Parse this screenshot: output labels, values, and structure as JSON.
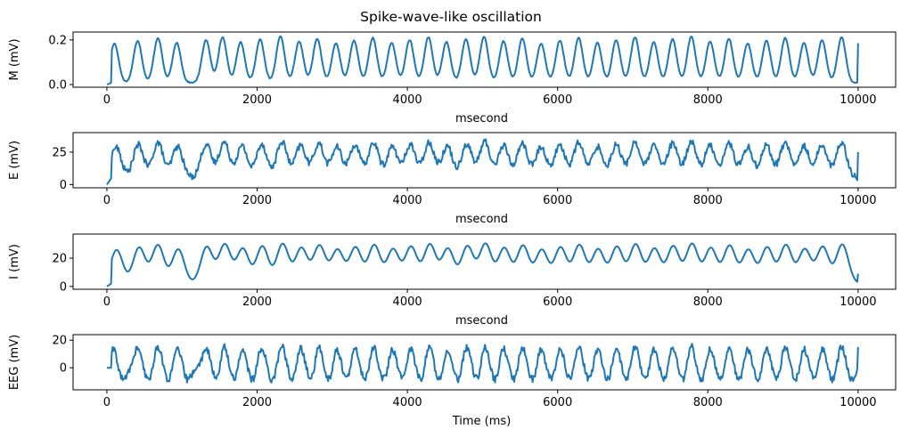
{
  "figure": {
    "title": "Spike-wave-like oscillation"
  },
  "chart_data": [
    {
      "type": "line",
      "name": "M",
      "ylabel": "M (mV)",
      "xlabel": "msecond",
      "xlim": [
        -450,
        10500
      ],
      "ylim": [
        -0.012,
        0.235
      ],
      "xticks": [
        0,
        2000,
        4000,
        6000,
        8000,
        10000
      ],
      "yticks": [
        0.0,
        0.2
      ],
      "ytick_labels": [
        "0.0",
        "0.2"
      ],
      "color": "#1f77b4",
      "shape": {
        "peaks_ms": [
          100,
          410,
          680,
          930,
          1320,
          1540,
          1780,
          2040,
          2310,
          2560,
          2800,
          3050,
          3290,
          3540,
          3790,
          4030,
          4280,
          4520,
          4780,
          5020,
          5280,
          5530,
          5780,
          6030,
          6280,
          6530,
          6780,
          7030,
          7280,
          7530,
          7780,
          8030,
          8280,
          8530,
          8780,
          9030,
          9280,
          9520,
          9780
        ],
        "peak_value": 0.215,
        "baseline": 0.008,
        "end_value": 0.185
      }
    },
    {
      "type": "line",
      "name": "E",
      "ylabel": "E (mV)",
      "xlabel": "msecond",
      "xlim": [
        -450,
        10500
      ],
      "ylim": [
        -2.5,
        40
      ],
      "xticks": [
        0,
        2000,
        4000,
        6000,
        8000,
        10000
      ],
      "yticks": [
        0,
        25
      ],
      "ytick_labels": [
        "0",
        "25"
      ],
      "color": "#1f77b4",
      "shape": {
        "peaks_ms": [
          120,
          420,
          680,
          940,
          1320,
          1560,
          1800,
          2060,
          2330,
          2580,
          2820,
          3060,
          3300,
          3550,
          3800,
          4040,
          4290,
          4530,
          4790,
          5030,
          5280,
          5530,
          5780,
          6030,
          6280,
          6530,
          6780,
          7030,
          7280,
          7530,
          7780,
          8030,
          8280,
          8530,
          8780,
          9030,
          9280,
          9520,
          9780
        ],
        "peak_value": 33,
        "baseline": 5,
        "end_value": 25
      }
    },
    {
      "type": "line",
      "name": "I",
      "ylabel": "I (mV)",
      "xlabel": "msecond",
      "xlim": [
        -450,
        10500
      ],
      "ylim": [
        -2,
        37
      ],
      "xticks": [
        0,
        2000,
        4000,
        6000,
        8000,
        10000
      ],
      "yticks": [
        0,
        20
      ],
      "ytick_labels": [
        "0",
        "20"
      ],
      "color": "#1f77b4",
      "shape": {
        "peaks_ms": [
          130,
          430,
          680,
          950,
          1330,
          1570,
          1810,
          2070,
          2340,
          2590,
          2830,
          3070,
          3310,
          3560,
          3810,
          4050,
          4300,
          4540,
          4800,
          5040,
          5290,
          5540,
          5790,
          6040,
          6290,
          6540,
          6790,
          7040,
          7290,
          7540,
          7790,
          8040,
          8290,
          8540,
          8790,
          9040,
          9290,
          9530,
          9790
        ],
        "peak_value": 30,
        "baseline": 2,
        "end_value": 9
      }
    },
    {
      "type": "line",
      "name": "EEG",
      "ylabel": "EEG (mV)",
      "xlabel": "Time (ms)",
      "xlim": [
        -450,
        10500
      ],
      "ylim": [
        -16,
        24
      ],
      "xticks": [
        0,
        2000,
        4000,
        6000,
        8000,
        10000
      ],
      "yticks": [
        0,
        20
      ],
      "ytick_labels": [
        "0",
        "20"
      ],
      "color": "#1f77b4",
      "shape": {
        "peaks_ms": [
          80,
          410,
          680,
          940,
          1320,
          1560,
          1800,
          2060,
          2330,
          2580,
          2820,
          3060,
          3300,
          3550,
          3800,
          4040,
          4290,
          4530,
          4790,
          5030,
          5280,
          5530,
          5780,
          6030,
          6280,
          6530,
          6780,
          7030,
          7280,
          7530,
          7780,
          8030,
          8280,
          8530,
          8780,
          9030,
          9280,
          9520,
          9780
        ],
        "peak_value": 16,
        "baseline": 0,
        "trough_value": -10,
        "end_value": 15
      }
    }
  ]
}
